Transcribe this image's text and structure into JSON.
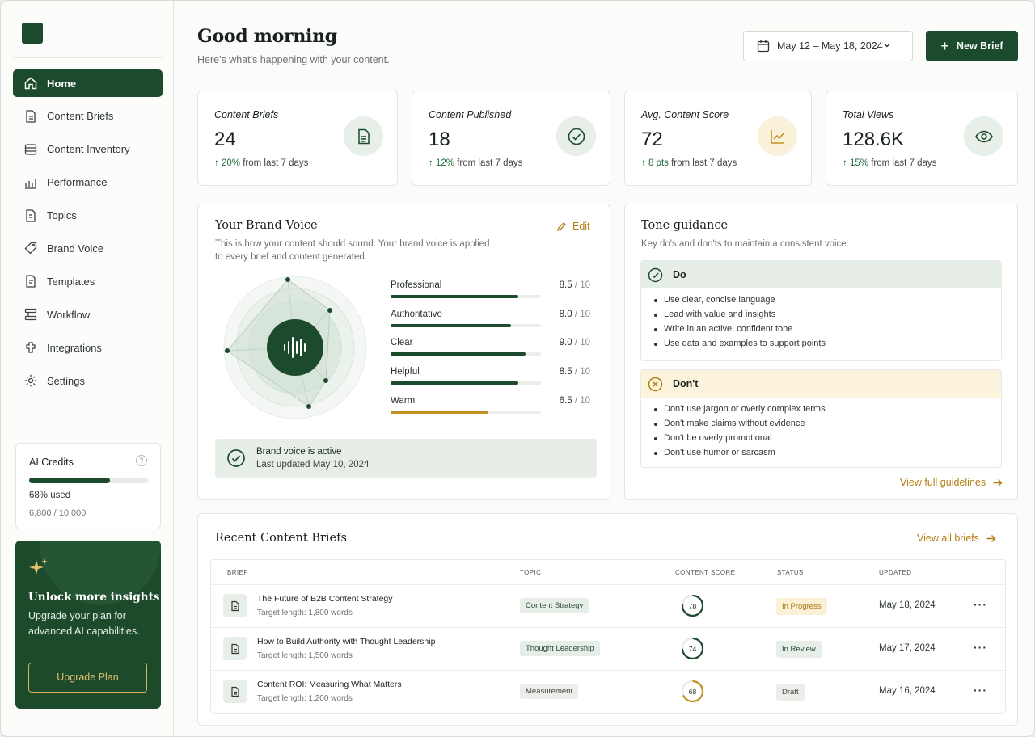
{
  "sidebar": {
    "items": [
      {
        "label": "Home"
      },
      {
        "label": "Content Briefs"
      },
      {
        "label": "Content Inventory"
      },
      {
        "label": "Performance"
      },
      {
        "label": "Topics"
      },
      {
        "label": "Brand Voice"
      },
      {
        "label": "Templates"
      },
      {
        "label": "Workflow"
      },
      {
        "label": "Integrations"
      },
      {
        "label": "Settings"
      }
    ],
    "active_item": "Home",
    "credits": {
      "title": "AI Credits",
      "used_fraction": 0.68,
      "used_label": "68% used",
      "count": "6,800 / 10,000"
    },
    "promo": {
      "title": "Unlock more insights",
      "text": "Upgrade your plan for advanced AI capabilities.",
      "button": "Upgrade Plan"
    }
  },
  "header": {
    "title": "Good morning",
    "subtitle": "Here's what's happening with your content.",
    "date_range": "May 12 – May 18, 2024",
    "new_button": "New Brief"
  },
  "stats": [
    {
      "label": "Content Briefs",
      "value": "24",
      "change": "20%",
      "change_suffix": "from last 7 days",
      "icon": "document-icon"
    },
    {
      "label": "Content Published",
      "value": "18",
      "change": "12%",
      "change_suffix": "from last 7 days",
      "icon": "check-circle-icon"
    },
    {
      "label": "Avg. Content Score",
      "value": "72",
      "change": "8 pts",
      "change_suffix": "from last 7 days",
      "icon": "trend-icon"
    },
    {
      "label": "Total Views",
      "value": "128.6K",
      "change": "15%",
      "change_suffix": "from last 7 days",
      "icon": "eye-icon"
    }
  ],
  "brand_voice": {
    "title": "Your Brand Voice",
    "edit": "Edit",
    "desc1": "This is how your content should sound. Your brand voice is applied",
    "desc2": "to every brief and content generated.",
    "traits": [
      {
        "name": "Professional",
        "score": "8.5",
        "value": 8.5,
        "max": "/ 10"
      },
      {
        "name": "Authoritative",
        "score": "8.0",
        "value": 8.0,
        "max": "/ 10"
      },
      {
        "name": "Clear",
        "score": "9.0",
        "value": 9.0,
        "max": "/ 10"
      },
      {
        "name": "Helpful",
        "score": "8.5",
        "value": 8.5,
        "max": "/ 10"
      },
      {
        "name": "Warm",
        "score": "6.5",
        "value": 6.5,
        "max": "/ 10"
      }
    ],
    "status_title": "Brand voice is active",
    "status_updated": "Last updated May 10, 2024"
  },
  "tone": {
    "title": "Tone guidance",
    "desc": "Key do's and don'ts to maintain a consistent voice.",
    "do_title": "Do",
    "do_items": [
      "Use clear, concise language",
      "Lead with value and insights",
      "Write in an active, confident tone",
      "Use data and examples to support points"
    ],
    "dont_title": "Don't",
    "dont_items": [
      "Don't use jargon or overly complex terms",
      "Don't make claims without evidence",
      "Don't be overly promotional",
      "Don't use humor or sarcasm"
    ],
    "link": "View full guidelines"
  },
  "briefs": {
    "title": "Recent Content Briefs",
    "link": "View all briefs",
    "columns": [
      "BRIEF",
      "TOPIC",
      "CONTENT SCORE",
      "STATUS",
      "UPDATED"
    ],
    "rows": [
      {
        "title": "The Future of B2B Content Strategy",
        "target": "Target length: 1,800 words",
        "topic": "Content Strategy",
        "score": "78",
        "score_value": 78,
        "status": "In Progress",
        "updated": "May 18, 2024"
      },
      {
        "title": "How to Build Authority with Thought Leadership",
        "target": "Target length: 1,500 words",
        "topic": "Thought Leadership",
        "score": "74",
        "score_value": 74,
        "status": "In Review",
        "updated": "May 17, 2024"
      },
      {
        "title": "Content ROI: Measuring What Matters",
        "target": "Target length: 1,200 words",
        "topic": "Measurement",
        "score": "68",
        "score_value": 68,
        "status": "Draft",
        "updated": "May 16, 2024"
      }
    ]
  },
  "colors": {
    "brand": "#1c4a2c",
    "accent": "#b37d14",
    "warn": "#c19123"
  }
}
